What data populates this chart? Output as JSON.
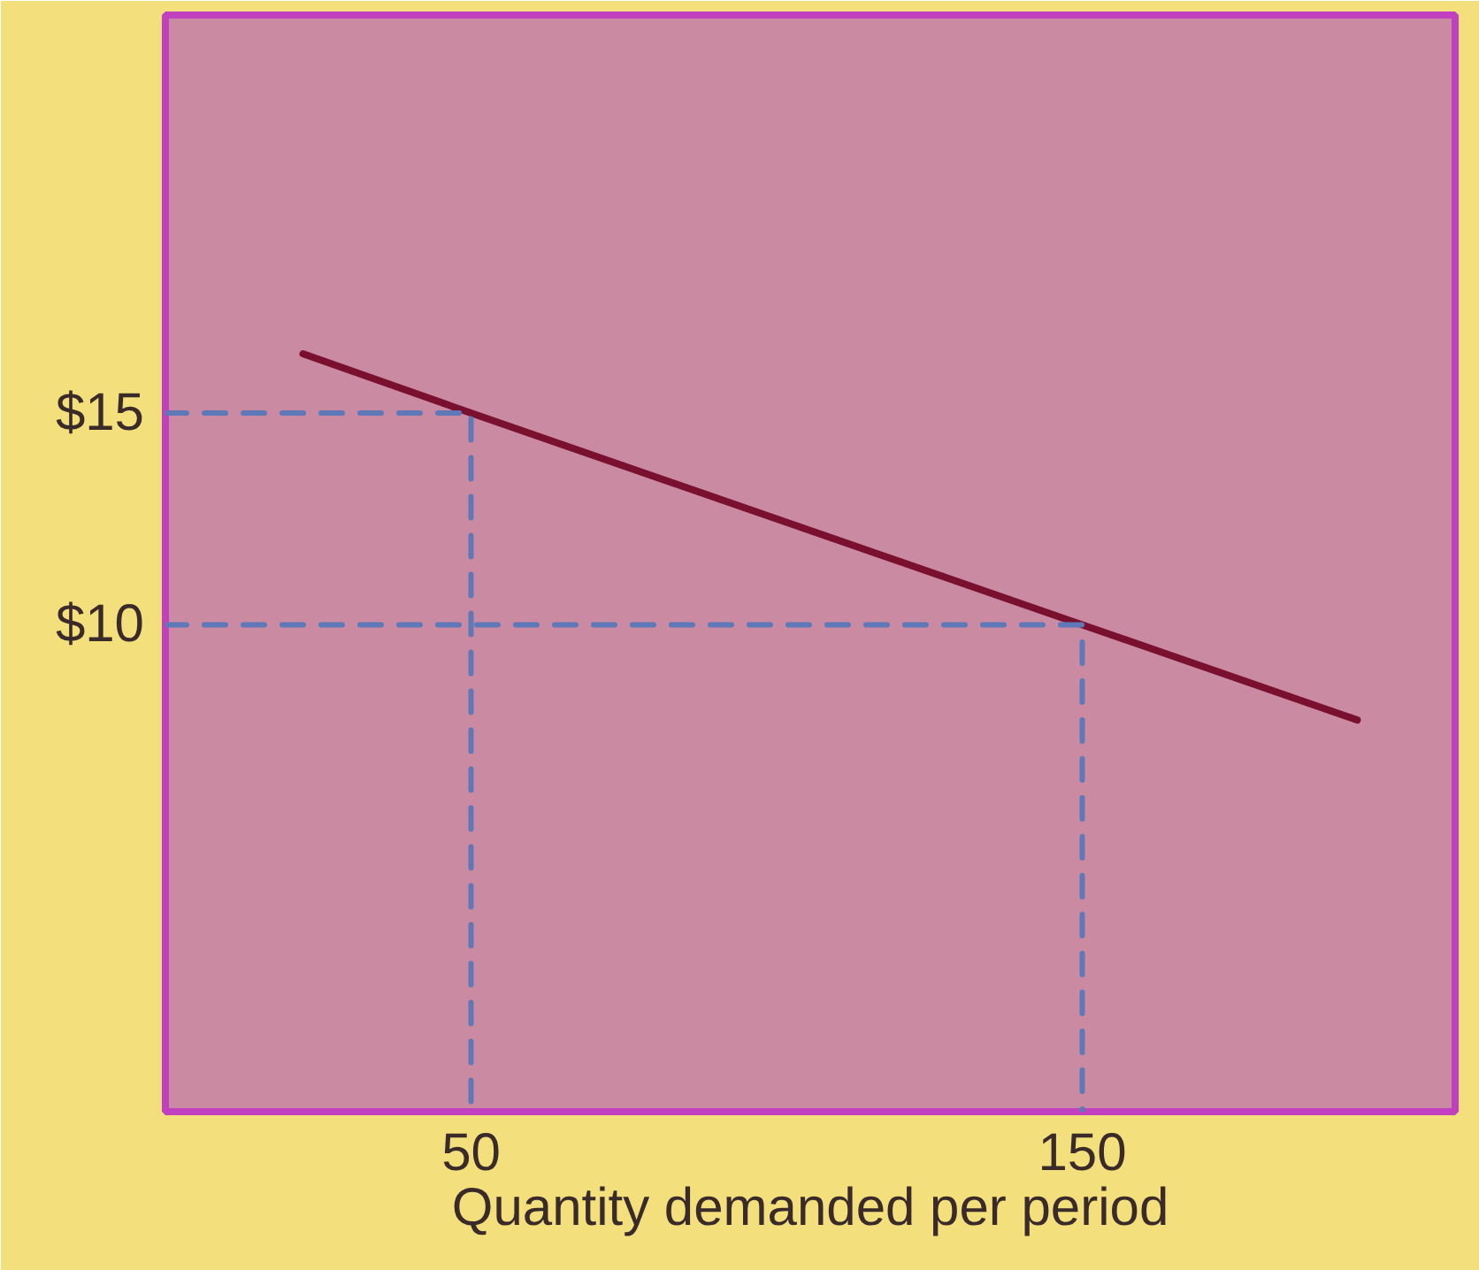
{
  "chart_data": {
    "type": "line",
    "xlabel": "Quantity demanded per period",
    "xlim": [
      0,
      211
    ],
    "ylim": [
      -1.5,
      24.4
    ],
    "xticks": [
      50,
      150
    ],
    "yticks": [
      {
        "value": 10,
        "label": "$10"
      },
      {
        "value": 15,
        "label": "$15"
      }
    ],
    "grid": false,
    "marker": "none",
    "series": [
      {
        "x": [
          22.5,
          50,
          150,
          195
        ],
        "values": [
          16.4,
          15,
          10,
          7.75
        ],
        "color": "#7a1030",
        "line_style": "solid"
      },
      {
        "x": [
          0,
          50,
          50
        ],
        "values": [
          15,
          15,
          -1.5
        ],
        "color": "#5f78b8",
        "line_style": "dashed"
      },
      {
        "x": [
          0,
          150,
          150
        ],
        "values": [
          10,
          10,
          -1.5
        ],
        "color": "#5f78b8",
        "line_style": "dashed"
      }
    ]
  }
}
